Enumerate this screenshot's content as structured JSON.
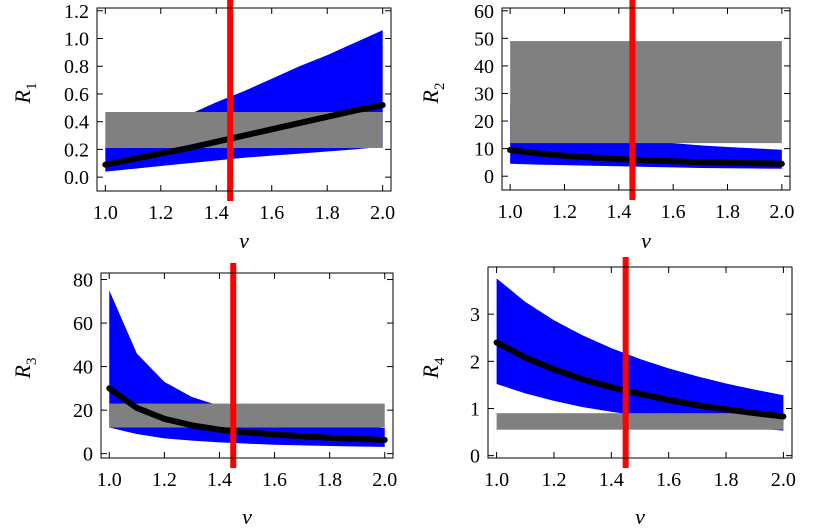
{
  "colors": {
    "band": "#0000ff",
    "box": "#808080",
    "line": "#000000",
    "marker": "#ff0000"
  },
  "marker_label": "",
  "chart_data": [
    {
      "type": "area",
      "subscript": "1",
      "ylabel": "R",
      "xlabel": "ν",
      "xlim": [
        0.97,
        2.03
      ],
      "ylim": [
        -0.1,
        1.22
      ],
      "xticks": [
        "1.0",
        "1.2",
        "1.4",
        "1.6",
        "1.8",
        "2.0"
      ],
      "yticks": [
        "0.0",
        "0.2",
        "0.4",
        "0.6",
        "0.8",
        "1.0",
        "1.2"
      ],
      "x": [
        1.0,
        1.1,
        1.2,
        1.3,
        1.4,
        1.5,
        1.6,
        1.7,
        1.8,
        1.9,
        2.0
      ],
      "central": [
        0.09,
        0.13,
        0.17,
        0.21,
        0.255,
        0.3,
        0.345,
        0.39,
        0.435,
        0.48,
        0.52
      ],
      "lower": [
        0.04,
        0.06,
        0.08,
        0.1,
        0.12,
        0.14,
        0.155,
        0.17,
        0.185,
        0.2,
        0.22
      ],
      "upper": [
        0.22,
        0.29,
        0.37,
        0.45,
        0.54,
        0.62,
        0.71,
        0.8,
        0.88,
        0.97,
        1.06
      ],
      "exp_range": [
        0.21,
        0.47
      ],
      "marker_x": 1.45
    },
    {
      "type": "area",
      "subscript": "2",
      "ylabel": "R",
      "xlabel": "ν",
      "xlim": [
        0.97,
        2.03
      ],
      "ylim": [
        -5,
        61
      ],
      "xticks": [
        "1.0",
        "1.2",
        "1.4",
        "1.6",
        "1.8",
        "2.0"
      ],
      "yticks": [
        "0",
        "10",
        "20",
        "30",
        "40",
        "50",
        "60"
      ],
      "x": [
        1.0,
        1.1,
        1.2,
        1.3,
        1.4,
        1.5,
        1.6,
        1.7,
        1.8,
        1.9,
        2.0
      ],
      "central": [
        9.5,
        8.3,
        7.4,
        6.8,
        6.2,
        5.8,
        5.4,
        5.1,
        4.9,
        4.7,
        4.5
      ],
      "lower": [
        4.5,
        4.2,
        4.0,
        3.8,
        3.6,
        3.4,
        3.2,
        3.0,
        2.9,
        2.8,
        2.7
      ],
      "upper": [
        26,
        21,
        18,
        15.5,
        14,
        13,
        12,
        11.2,
        10.6,
        10.1,
        9.6
      ],
      "exp_range": [
        12,
        49
      ],
      "marker_x": 1.45
    },
    {
      "type": "area",
      "subscript": "3",
      "ylabel": "R",
      "xlabel": "ν",
      "xlim": [
        0.97,
        2.03
      ],
      "ylim": [
        -2,
        83
      ],
      "xticks": [
        "1.0",
        "1.2",
        "1.4",
        "1.6",
        "1.8",
        "2.0"
      ],
      "yticks": [
        "0",
        "20",
        "40",
        "60",
        "80"
      ],
      "x": [
        1.0,
        1.1,
        1.2,
        1.3,
        1.4,
        1.5,
        1.6,
        1.7,
        1.8,
        1.9,
        2.0
      ],
      "central": [
        30,
        21,
        16,
        13,
        11,
        9.8,
        8.8,
        8,
        7.3,
        6.8,
        6.3
      ],
      "lower": [
        12,
        9,
        7,
        6,
        5.2,
        4.6,
        4.1,
        3.8,
        3.5,
        3.3,
        3.1
      ],
      "upper": [
        75,
        46,
        33,
        26,
        22,
        19,
        17,
        15,
        13.8,
        12.7,
        11.8
      ],
      "exp_range": [
        12,
        23
      ],
      "marker_x": 1.45
    },
    {
      "type": "area",
      "subscript": "4",
      "ylabel": "R",
      "xlabel": "ν",
      "xlim": [
        0.97,
        2.03
      ],
      "ylim": [
        -0.05,
        4.0
      ],
      "xticks": [
        "1.0",
        "1.2",
        "1.4",
        "1.6",
        "1.8",
        "2.0"
      ],
      "yticks": [
        "0",
        "1",
        "2",
        "3"
      ],
      "x": [
        1.0,
        1.1,
        1.2,
        1.3,
        1.4,
        1.5,
        1.6,
        1.7,
        1.8,
        1.9,
        2.0
      ],
      "central": [
        2.4,
        2.08,
        1.83,
        1.62,
        1.45,
        1.31,
        1.18,
        1.07,
        0.98,
        0.9,
        0.83
      ],
      "lower": [
        1.52,
        1.32,
        1.16,
        1.03,
        0.93,
        0.84,
        0.76,
        0.69,
        0.63,
        0.58,
        0.53
      ],
      "upper": [
        3.76,
        3.26,
        2.87,
        2.55,
        2.28,
        2.05,
        1.85,
        1.68,
        1.53,
        1.4,
        1.28
      ],
      "exp_range": [
        0.55,
        0.9
      ],
      "marker_x": 1.45
    }
  ]
}
